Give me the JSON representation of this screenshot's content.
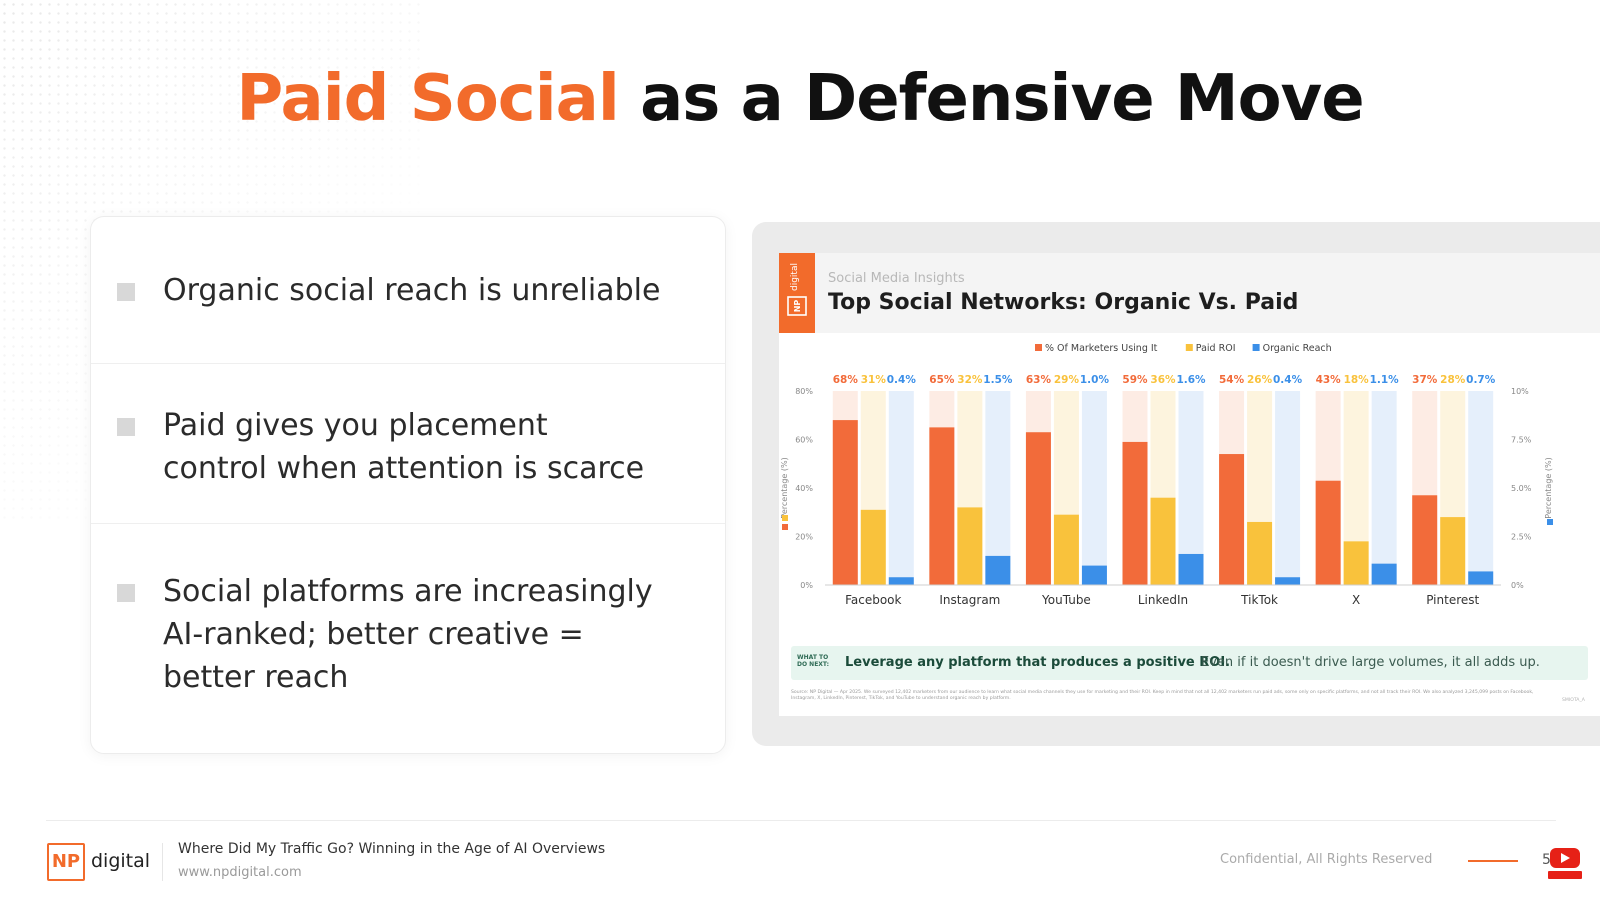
{
  "slide": {
    "title_accent": "Paid Social",
    "title_rest": "as a Defensive Move"
  },
  "bullets": [
    {
      "text": "Organic social reach is unreliable"
    },
    {
      "text": "Paid gives you placement\ncontrol when attention is scarce"
    },
    {
      "text": "Social platforms are increasingly\nAI-ranked; better creative =\nbetter reach"
    }
  ],
  "card": {
    "subtitle": "Social Media Insights",
    "title": "Top Social Networks: Organic Vs. Paid",
    "brand": "NP digital",
    "note_tag": "WHAT TO DO NEXT:",
    "note_lead": "Leverage any platform that produces a positive ROI.",
    "note_tail": "Even if it doesn't drive large volumes, it all adds up.",
    "source": "Source: NP Digital — Apr 2025. We surveyed 12,402 marketers from our audience to learn what social media channels they use for marketing and their ROI. Keep in mind that not all 12,402 marketers run paid ads, some only on specific platforms, and not all track their ROI. We also analyzed 3,245,099 posts on Facebook, Instagram, X, LinkedIn, Pinterest, TikTok, and YouTube to understand organic reach by platform.",
    "source_id": "SMIOTA_A"
  },
  "chart_data": {
    "type": "bar",
    "categories": [
      "Facebook",
      "Instagram",
      "YouTube",
      "LinkedIn",
      "TikTok",
      "X",
      "Pinterest"
    ],
    "series": [
      {
        "name": "% Of Marketers Using It",
        "axis": "left",
        "color": "#f26b3a",
        "values": [
          68,
          65,
          63,
          59,
          54,
          43,
          37
        ]
      },
      {
        "name": "Paid ROI",
        "axis": "left",
        "color": "#f9c23c",
        "values": [
          31,
          32,
          29,
          36,
          26,
          18,
          28
        ]
      },
      {
        "name": "Organic Reach",
        "axis": "right",
        "color": "#3b8fe8",
        "values": [
          0.4,
          1.5,
          1.0,
          1.6,
          0.4,
          1.1,
          0.7
        ]
      }
    ],
    "value_labels": [
      [
        "68%",
        "31%",
        "0.4%"
      ],
      [
        "65%",
        "32%",
        "1.5%"
      ],
      [
        "63%",
        "29%",
        "1.0%"
      ],
      [
        "59%",
        "36%",
        "1.6%"
      ],
      [
        "54%",
        "26%",
        "0.4%"
      ],
      [
        "43%",
        "18%",
        "1.1%"
      ],
      [
        "37%",
        "28%",
        "0.7%"
      ]
    ],
    "ylim_left": [
      0,
      80
    ],
    "ylim_right": [
      0,
      10
    ],
    "yticks_left": [
      0,
      20,
      40,
      60,
      80
    ],
    "yticks_right": [
      0,
      2.5,
      5,
      7.5,
      10
    ],
    "ytick_labels_left": [
      "0%",
      "20%",
      "40%",
      "60%",
      "80%"
    ],
    "ytick_labels_right": [
      "0%",
      "2.5%",
      "5.0%",
      "7.5%",
      "10%"
    ],
    "ylabel_left": "Percentage (%)",
    "ylabel_right": "Percentage (%)",
    "legend": "top-center",
    "grid": false
  },
  "footer": {
    "logo_np": "NP",
    "logo_digital": "digital",
    "title": "Where Did My Traffic Go? Winning in the Age of AI Overviews",
    "url": "www.npdigital.com",
    "confidential": "Confidential, All Rights Reserved",
    "page": "5"
  }
}
